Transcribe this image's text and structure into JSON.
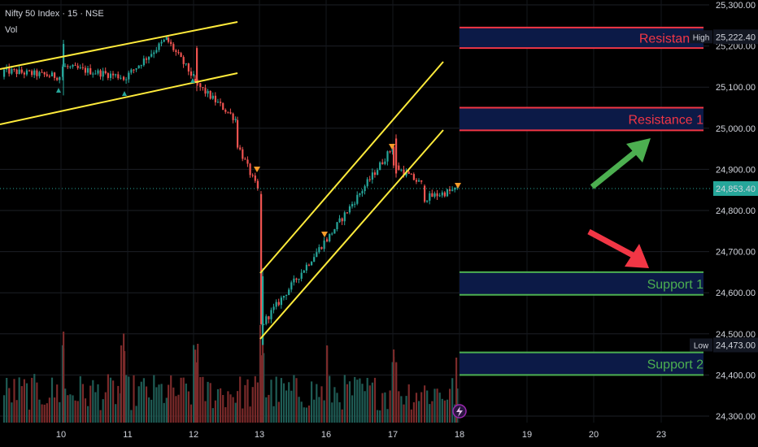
{
  "header": {
    "title": "Nifty 50 Index · 15 · NSE",
    "volume_label": "Vol"
  },
  "colors": {
    "background": "#000000",
    "up": "#26a69a",
    "down": "#ef5350",
    "trendline": "#ffeb3b",
    "resistance_line": "#f23645",
    "support_line": "#4caf50",
    "zone_fill": "#0c1a47",
    "axis_text": "#d1d4dc",
    "arrow_up": "#4caf50",
    "arrow_down": "#f23645"
  },
  "tags": {
    "high_label": "High",
    "high_value": "25,222.40",
    "low_label": "Low",
    "low_value": "24,473.00",
    "current_value": "24,853.40"
  },
  "chart_data": {
    "type": "candlestick",
    "title": "Nifty 50 Index · 15 · NSE",
    "ylim": [
      24290,
      25300
    ],
    "yticks": [
      {
        "value": 25300,
        "label": "25,300.00"
      },
      {
        "value": 25200,
        "label": "25,200.00"
      },
      {
        "value": 25100,
        "label": "25,100.00"
      },
      {
        "value": 25000,
        "label": "25,000.00"
      },
      {
        "value": 24900,
        "label": "24,900.00"
      },
      {
        "value": 24800,
        "label": "24,800.00"
      },
      {
        "value": 24700,
        "label": "24,700.00"
      },
      {
        "value": 24600,
        "label": "24,600.00"
      },
      {
        "value": 24500,
        "label": "24,500.00"
      },
      {
        "value": 24400,
        "label": "24,400.00"
      },
      {
        "value": 24300,
        "label": "24,300.00"
      }
    ],
    "xticks": [
      "10",
      "11",
      "12",
      "13",
      "16",
      "17",
      "18",
      "19",
      "20",
      "23"
    ],
    "grid": true,
    "levels": [
      {
        "name": "Resistance 2",
        "shown_label": "Resistance",
        "top": 25245,
        "bottom": 25195,
        "kind": "resistance"
      },
      {
        "name": "Resistance 1",
        "shown_label": "Resistance 1",
        "top": 25050,
        "bottom": 24995,
        "kind": "resistance"
      },
      {
        "name": "Support 1",
        "shown_label": "Support 1",
        "top": 24650,
        "bottom": 24595,
        "kind": "support"
      },
      {
        "name": "Support 2",
        "shown_label": "Support 2",
        "top": 24455,
        "bottom": 24400,
        "kind": "support"
      }
    ],
    "price_path": [
      {
        "session": "10",
        "start": 25120,
        "end": 25140
      },
      {
        "session": "11",
        "start": 25140,
        "end": 25165
      },
      {
        "session": "11b",
        "start": 25165,
        "end": 25215
      },
      {
        "session": "12",
        "start": 25215,
        "end": 25050
      },
      {
        "session": "12b",
        "start": 25050,
        "end": 24835
      },
      {
        "session": "13",
        "start": 24490,
        "end": 24720
      },
      {
        "session": "16",
        "start": 24720,
        "end": 24950
      },
      {
        "session": "17",
        "start": 24960,
        "end": 24880
      },
      {
        "session": "17b",
        "start": 24880,
        "end": 24853
      }
    ]
  }
}
